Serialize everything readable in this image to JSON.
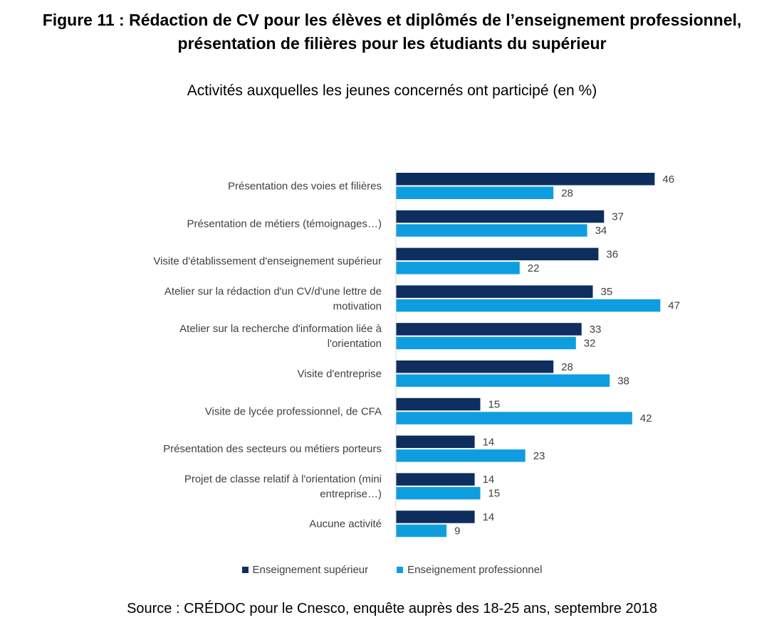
{
  "figure": {
    "title_line1": "Figure 11 : Rédaction de CV pour les élèves et diplômés de l’enseignement professionnel,",
    "title_line2": "présentation de filières pour les étudiants du supérieur",
    "source": "Source : CRÉDOC pour le Cnesco, enquête auprès des 18-25 ans, septembre 2018"
  },
  "chart_data": {
    "type": "bar",
    "orientation": "horizontal",
    "title": "Activités auxquelles les jeunes concernés ont participé (en %)",
    "categories": [
      [
        "Présentation des voies et filières"
      ],
      [
        "Présentation de métiers (témoignages…)"
      ],
      [
        "Visite d'établissement d'enseignement supérieur"
      ],
      [
        "Atelier sur la rédaction d'un CV/d'une lettre de",
        "motivation"
      ],
      [
        "Atelier sur la recherche d'information liée à",
        "l'orientation"
      ],
      [
        "Visite d'entreprise"
      ],
      [
        "Visite de lycée professionnel, de CFA"
      ],
      [
        "Présentation des secteurs ou métiers porteurs"
      ],
      [
        "Projet de classe relatif à l'orientation (mini",
        "entreprise…)"
      ],
      [
        "Aucune activité"
      ]
    ],
    "series": [
      {
        "name": "Enseignement supérieur",
        "color": "#0d2e5e",
        "values": [
          46,
          37,
          36,
          35,
          33,
          28,
          15,
          14,
          14,
          14
        ]
      },
      {
        "name": "Enseignement professionnel",
        "color": "#0e9ee0",
        "values": [
          28,
          34,
          22,
          47,
          32,
          38,
          42,
          23,
          15,
          9
        ]
      }
    ],
    "data_labels": true,
    "legend_position": "bottom",
    "grid": false,
    "xlim": [
      0,
      50
    ]
  }
}
